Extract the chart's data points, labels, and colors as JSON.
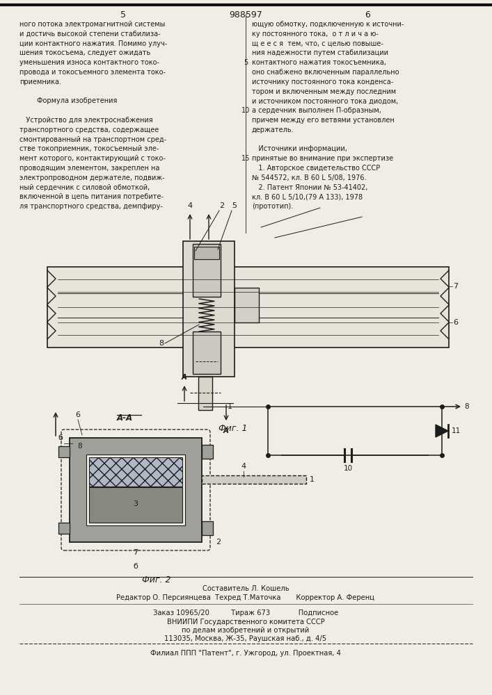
{
  "page_color": "#f0ede5",
  "header_number": "988597",
  "col_left": "5",
  "col_right": "6",
  "left_text": [
    "ного потока электромагнитной системы",
    "и достичь высокой степени стабилиза-",
    "ции контактного нажатия. Помимо улуч-",
    "шения токосъема, следует ожидать",
    "уменьшения износа контактного токо-",
    "провода и токосъемного элемента токо-",
    "приемника.",
    "",
    "        Формула изобретения",
    "",
    "   Устройство для электроснабжения",
    "транспортного средства, содержащее",
    "смонтированный на транспортном сред-",
    "стве токоприемник, токосъемный эле-",
    "мент которого, контактирующий с токо-",
    "проводящим элементом, закреплен на",
    "электропроводном держателе, подвиж-",
    "ный сердечник с силовой обмоткой,",
    "включенной в цепь питания потребите-",
    "ля транспортного средства, демпфиру-"
  ],
  "right_text": [
    "ющую обмотку, подключенную к источни-",
    "ку постоянного тока,  о т л и ч а ю-",
    "щ е е с я  тем, что, с целью повыше-",
    "ния надежности путем стабилизации",
    "контактного нажатия токосъемника,",
    "оно снабжено включенным параллельно",
    "источнику постоянного тока конденса-",
    "тором и включенным между последним",
    "и источником постоянного тока диодом,",
    "а сердечник выполнен П-образным,",
    "причем между его ветвями установлен",
    "держатель.",
    "",
    "   Источники информации,",
    "принятые во внимание при экспертизе",
    "   1. Авторское свидетельство СССР",
    "№ 544572, кл. В 60 L 5/08, 1976.",
    "   2. Патент Японии № 53-41402,",
    "кл. В 60 L 5/10,(79 А 133), 1978",
    "(прототип)."
  ],
  "line_numbers": [
    "5",
    "10",
    "15"
  ],
  "footer_sestavitel": "Составитель Л. Кошель",
  "footer_editor": "Редактор О. Персиянцева  Техред Т.Маточка       Корректор А. Ференц",
  "footer_zakaz": "Заказ 10965/20          Тираж 673             Подписное",
  "footer_vniip1": "ВНИИПИ Государственного комитета СССР",
  "footer_vniip2": "по делам изобретений и открытий",
  "footer_vniip3": "113035, Москва, Ж-35, Раушская наб., д. 4/5",
  "footer_filial": "Филиал ППП \"Патент\", г. Ужгород, ул. Проектная, 4",
  "fig1_caption": "Фиг. 1",
  "fig2_caption": "Фиг. 2",
  "aa_label": "А-А",
  "text_color": "#1c1c1c",
  "draw_color": "#1c1c1c",
  "light_gray": "#c8c5bc",
  "mid_gray": "#a0a09a",
  "dark_fill": "#787870"
}
